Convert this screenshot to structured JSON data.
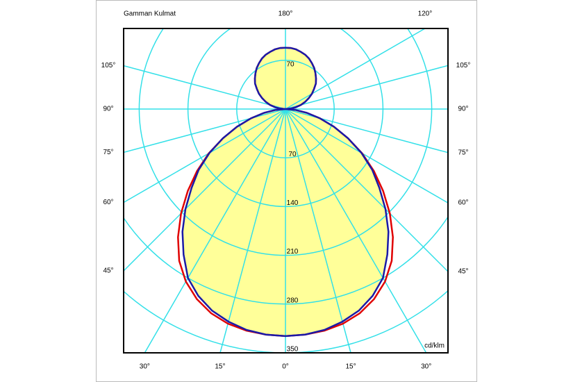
{
  "chart_data": {
    "type": "polar",
    "title": "Gamman Kulmat",
    "unit_label": "cd/klm",
    "x": [
      0,
      5,
      10,
      15,
      20,
      25,
      30,
      35,
      40,
      45,
      50,
      55,
      60,
      65,
      70,
      75,
      80,
      85,
      90,
      95,
      100,
      105,
      110,
      115,
      120,
      125,
      130,
      135,
      140,
      145,
      150,
      155,
      160,
      165,
      170,
      175,
      180
    ],
    "series": [
      {
        "color": "#e00000",
        "values": [
          326,
          325,
          323,
          319,
          312,
          301,
          286,
          266,
          240,
          212,
          183,
          155,
          127,
          99,
          74,
          51,
          31,
          14,
          0,
          8,
          15,
          23,
          30,
          37,
          44,
          50,
          57,
          62,
          67,
          72,
          76,
          80,
          83,
          85,
          87,
          88,
          88
        ]
      },
      {
        "color": "#1a1aa8",
        "fill": "#ffff99",
        "values": [
          326,
          325,
          322,
          316,
          308,
          296,
          280,
          255,
          230,
          203,
          176,
          152,
          126,
          99,
          74,
          51,
          31,
          14,
          0,
          8,
          15,
          23,
          30,
          37,
          44,
          50,
          57,
          62,
          67,
          72,
          76,
          80,
          83,
          85,
          87,
          88,
          88
        ]
      }
    ],
    "rlim": [
      0,
      350
    ],
    "rticks": [
      70,
      140,
      210,
      280,
      350
    ],
    "rticks_top": [
      70
    ],
    "left_angle_ticks": [
      {
        "value": 105,
        "label": "105°"
      },
      {
        "value": 90,
        "label": "90°"
      },
      {
        "value": 75,
        "label": "75°"
      },
      {
        "value": 60,
        "label": "60°"
      },
      {
        "value": 45,
        "label": "45°"
      },
      {
        "value": 30,
        "label": "30°"
      },
      {
        "value": 15,
        "label": "15°"
      },
      {
        "value": 0,
        "label": "0°"
      }
    ],
    "right_angle_ticks": [
      {
        "value": 180,
        "label": "180°"
      },
      {
        "value": 120,
        "label": "120°"
      },
      {
        "value": 105,
        "label": "105°"
      },
      {
        "value": 90,
        "label": "90°"
      },
      {
        "value": 75,
        "label": "75°"
      },
      {
        "value": 60,
        "label": "60°"
      },
      {
        "value": 45,
        "label": "45°"
      },
      {
        "value": 30,
        "label": "30°"
      },
      {
        "value": 15,
        "label": "15°"
      }
    ],
    "grid_color": "#33e0e8"
  }
}
